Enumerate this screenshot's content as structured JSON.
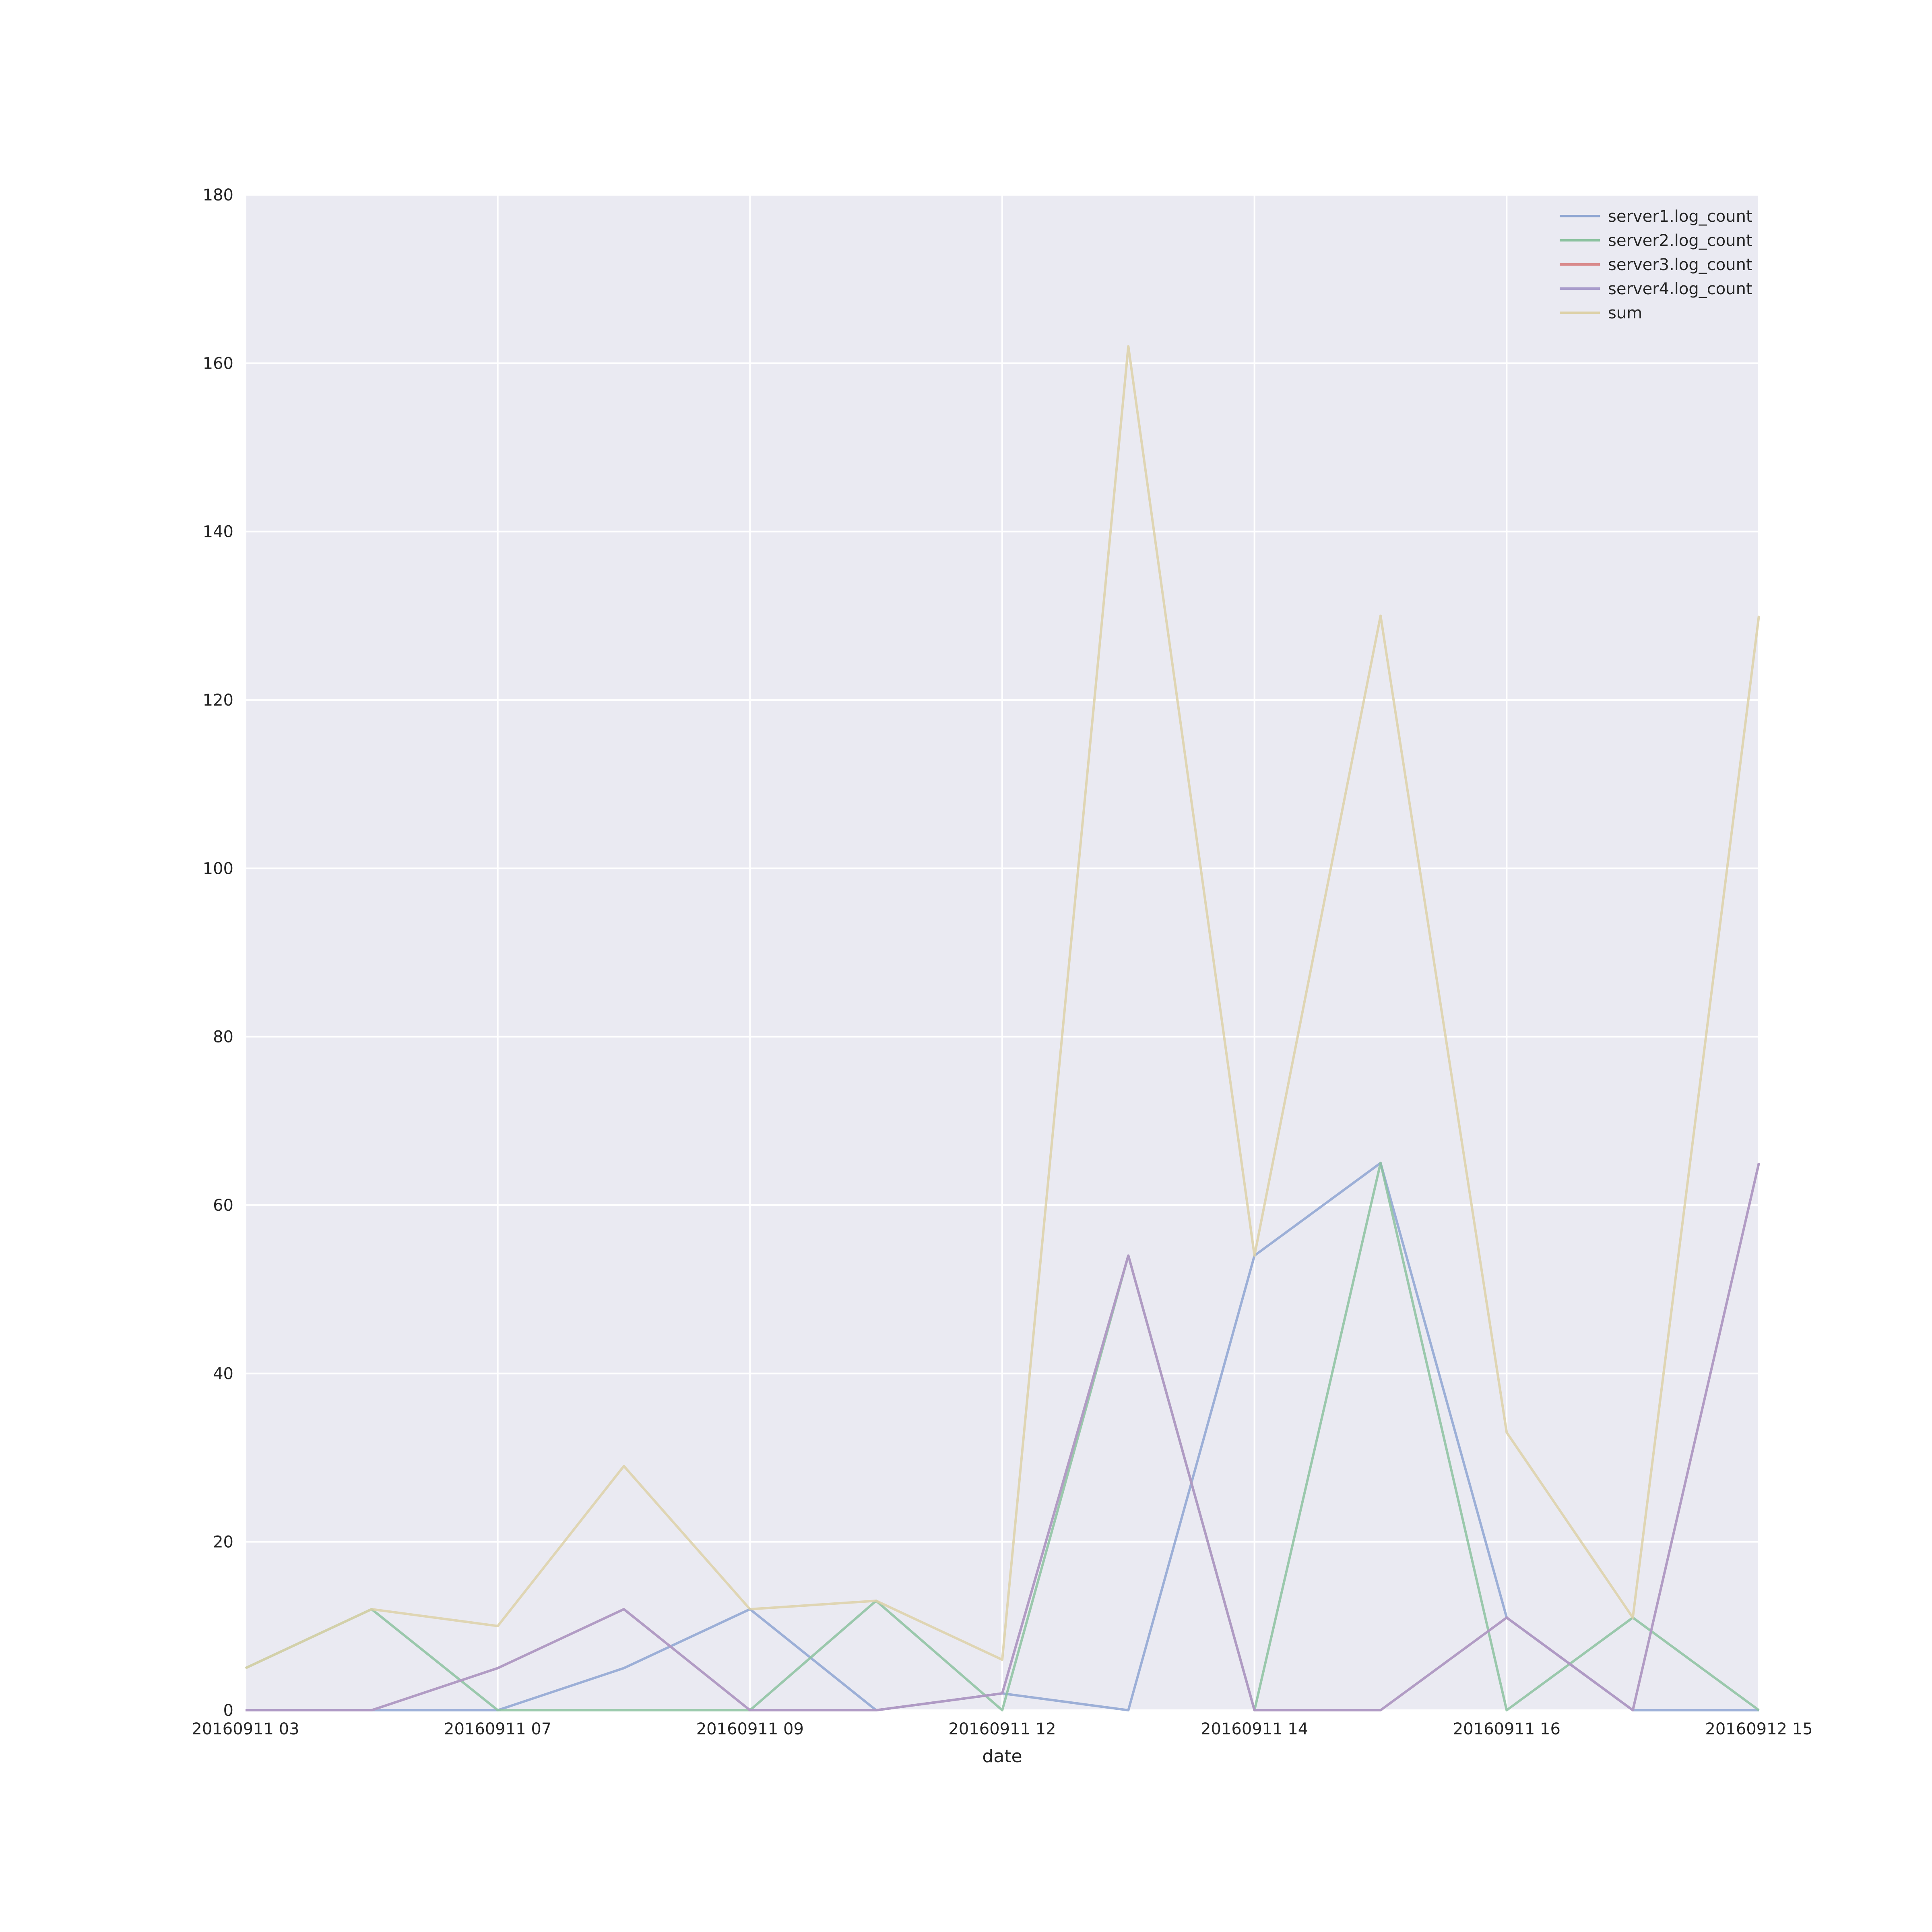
{
  "chart_data": {
    "type": "line",
    "title": "",
    "xlabel": "date",
    "ylabel": "",
    "ylim": [
      0,
      180
    ],
    "yticks": [
      0,
      20,
      40,
      60,
      80,
      100,
      120,
      140,
      160,
      180
    ],
    "xtick_labels": [
      {
        "index": 0,
        "label": "20160911 03"
      },
      {
        "index": 2,
        "label": "20160911 07"
      },
      {
        "index": 4,
        "label": "20160911 09"
      },
      {
        "index": 6,
        "label": "20160911 12"
      },
      {
        "index": 8,
        "label": "20160911 14"
      },
      {
        "index": 10,
        "label": "20160911 16"
      },
      {
        "index": 12,
        "label": "20160912 15"
      }
    ],
    "grid": true,
    "legend_position": "top-right",
    "series": [
      {
        "name": "server1.log_count",
        "color": "#8ea5d2",
        "values": [
          0,
          0,
          0,
          5,
          12,
          0,
          2,
          0,
          54,
          65,
          11,
          0,
          0
        ]
      },
      {
        "name": "server2.log_count",
        "color": "#8cc2a0",
        "values": [
          5,
          12,
          0,
          0,
          0,
          13,
          0,
          54,
          0,
          65,
          0,
          11,
          0
        ]
      },
      {
        "name": "server3.log_count",
        "color": "#d98a8c",
        "values": [
          0,
          0,
          5,
          12,
          0,
          0,
          2,
          54,
          0,
          0,
          11,
          0,
          65
        ]
      },
      {
        "name": "server4.log_count",
        "color": "#a99ccc",
        "values": [
          0,
          0,
          5,
          12,
          0,
          0,
          2,
          54,
          0,
          0,
          11,
          0,
          65
        ]
      },
      {
        "name": "sum",
        "color": "#ddd1a8",
        "values": [
          5,
          12,
          10,
          29,
          12,
          13,
          6,
          162,
          54,
          130,
          33,
          11,
          130
        ]
      }
    ]
  }
}
